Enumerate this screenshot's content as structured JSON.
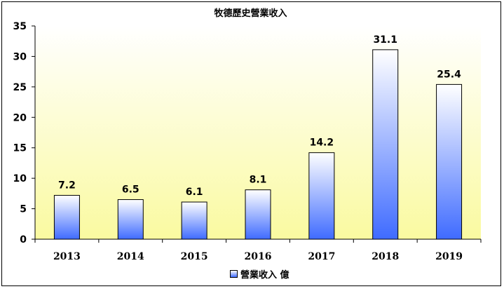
{
  "chart_data": {
    "type": "bar",
    "title": "牧德歷史營業收入",
    "categories": [
      "2013",
      "2014",
      "2015",
      "2016",
      "2017",
      "2018",
      "2019"
    ],
    "series": [
      {
        "name": "營業收入 億",
        "values": [
          7.2,
          6.5,
          6.1,
          8.1,
          14.2,
          31.1,
          25.4
        ]
      }
    ],
    "data_labels": [
      "7.2",
      "6.5",
      "6.1",
      "8.1",
      "14.2",
      "31.1",
      "25.4"
    ],
    "y_ticks": [
      "0",
      "5",
      "10",
      "15",
      "20",
      "25",
      "30",
      "35"
    ],
    "ylim": [
      0,
      35
    ],
    "legend_position": "bottom",
    "grid": false
  },
  "colors": {
    "plot_bg_top": "#ffffff",
    "plot_bg_bottom": "#fafaa0",
    "bar_top": "#ffffff",
    "bar_bottom": "#3f6bff"
  }
}
